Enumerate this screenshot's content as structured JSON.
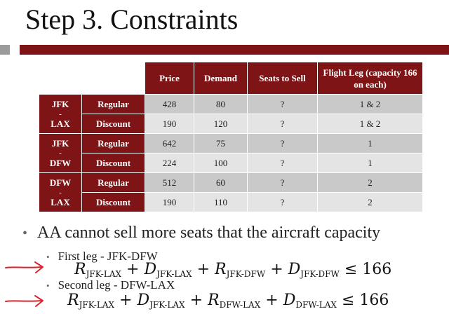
{
  "title": "Step 3. Constraints",
  "table": {
    "headers": [
      "Price",
      "Demand",
      "Seats to Sell",
      "Flight Leg (capacity 166 on each)"
    ],
    "rows": [
      {
        "route": "JFK - LAX",
        "route_top": "JFK",
        "route_dash": "-",
        "route_bottom": "LAX",
        "fare": "Regular",
        "price": "428",
        "demand": "80",
        "seats": "?",
        "leg": "1 & 2"
      },
      {
        "fare": "Discount",
        "price": "190",
        "demand": "120",
        "seats": "?",
        "leg": "1 & 2"
      },
      {
        "route": "JFK - DFW",
        "route_top": "JFK",
        "route_dash": "-",
        "route_bottom": "DFW",
        "fare": "Regular",
        "price": "642",
        "demand": "75",
        "seats": "?",
        "leg": "1"
      },
      {
        "fare": "Discount",
        "price": "224",
        "demand": "100",
        "seats": "?",
        "leg": "1"
      },
      {
        "route": "DFW - LAX",
        "route_top": "DFW",
        "route_dash": "-",
        "route_bottom": "LAX",
        "fare": "Regular",
        "price": "512",
        "demand": "60",
        "seats": "?",
        "leg": "2"
      },
      {
        "fare": "Discount",
        "price": "190",
        "demand": "110",
        "seats": "?",
        "leg": "2"
      }
    ]
  },
  "bullet_main": "AA cannot sell more seats that the aircraft capacity",
  "sub1": "First leg - JFK-DFW",
  "sub2": "Second leg - DFW-LAX",
  "eq1": {
    "t1v": "R",
    "t1s": "JFK-LAX",
    "t2v": "D",
    "t2s": "JFK-LAX",
    "t3v": "R",
    "t3s": "JFK-DFW",
    "t4v": "D",
    "t4s": "JFK-DFW",
    "plus": "+",
    "rel": "≤",
    "rhs": "166"
  },
  "eq2": {
    "t1v": "R",
    "t1s": "JFK-LAX",
    "t2v": "D",
    "t2s": "JFK-LAX",
    "t3v": "R",
    "t3s": "DFW-LAX",
    "t4v": "D",
    "t4s": "DFW-LAX",
    "plus": "+",
    "rel": "≤",
    "rhs": "166"
  },
  "bullet_glyph": "•",
  "colors": {
    "accent": "#7f1416",
    "row_dark": "#c9c9c9",
    "row_light": "#e4e4e4",
    "arrow": "#d8242a"
  }
}
